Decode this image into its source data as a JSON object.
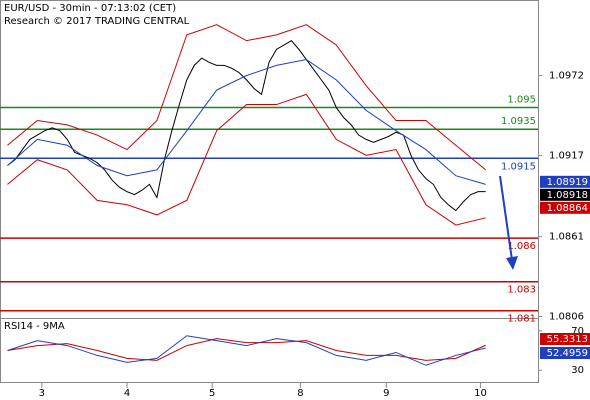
{
  "chart_data": {
    "type": "line",
    "title": "EUR/USD - 30min - 07:13:02 (CET)",
    "subtitle": "Research © 2017 TRADING CENTRAL",
    "xlim": [
      0,
      72
    ],
    "xticks": [
      {
        "value": 5.6,
        "label": "3"
      },
      {
        "value": 17,
        "label": "4"
      },
      {
        "value": 28.4,
        "label": "5"
      },
      {
        "value": 40.2,
        "label": "8"
      },
      {
        "value": 51.7,
        "label": "9"
      },
      {
        "value": 64.3,
        "label": "10"
      }
    ],
    "ylim": [
      1.0805,
      1.1024
    ],
    "yticks": [
      1.0972,
      1.0917,
      1.0861,
      1.0806
    ],
    "series": [
      {
        "color": "#000000",
        "x": [
          1,
          2,
          3,
          4,
          5,
          6,
          7,
          8,
          9,
          10,
          11,
          12,
          13,
          14,
          15,
          16,
          17,
          18,
          19,
          20,
          21,
          22,
          23,
          24,
          25,
          26,
          27,
          28,
          29,
          30,
          31,
          32,
          33,
          34,
          35,
          36,
          37,
          38,
          39,
          40,
          41,
          42,
          43,
          44,
          45,
          46,
          47,
          48,
          49,
          50,
          51,
          52,
          53,
          54,
          55,
          56,
          57,
          58,
          59,
          60,
          61,
          62,
          63,
          64,
          65
        ],
        "values": [
          1.091,
          1.0914,
          1.0921,
          1.0928,
          1.0931,
          1.0934,
          1.0936,
          1.0934,
          1.0928,
          1.0919,
          1.0917,
          1.0915,
          1.0912,
          1.0907,
          1.09,
          1.0895,
          1.0892,
          1.089,
          1.0893,
          1.0897,
          1.0888,
          1.0914,
          1.0934,
          1.0952,
          1.0969,
          1.0979,
          1.0984,
          1.0981,
          1.0979,
          1.0979,
          1.0977,
          1.0974,
          1.0969,
          1.0963,
          1.0959,
          1.0981,
          1.099,
          1.0993,
          1.0996,
          1.099,
          1.0983,
          1.0976,
          1.0969,
          1.0962,
          1.095,
          1.0943,
          1.0938,
          1.0931,
          1.0928,
          1.0926,
          1.0928,
          1.093,
          1.0933,
          1.0931,
          1.0917,
          1.0907,
          1.0901,
          1.0897,
          1.0888,
          1.0883,
          1.0879,
          1.0885,
          1.089,
          1.0892,
          1.0892
        ]
      },
      {
        "color": "#cc0000",
        "x": [
          1,
          5,
          9,
          13,
          17,
          21,
          25,
          29,
          33,
          37,
          41,
          45,
          49,
          53,
          57,
          61,
          65
        ],
        "values": [
          1.0924,
          1.0941,
          1.0938,
          1.0931,
          1.0921,
          1.0941,
          1.1,
          1.1007,
          1.0996,
          1.1,
          1.1007,
          1.0993,
          1.0965,
          1.0941,
          1.0941,
          1.0924,
          1.0907
        ]
      },
      {
        "color": "#1f3fbf",
        "x": [
          1,
          5,
          9,
          13,
          17,
          21,
          25,
          29,
          33,
          37,
          41,
          45,
          49,
          53,
          57,
          61,
          65
        ],
        "values": [
          1.091,
          1.0928,
          1.0924,
          1.091,
          1.0903,
          1.0907,
          1.0934,
          1.0962,
          1.0972,
          1.0979,
          1.0983,
          1.0969,
          1.0948,
          1.0934,
          1.0921,
          1.0903,
          1.0897
        ]
      },
      {
        "color": "#cc0000",
        "x": [
          1,
          5,
          9,
          13,
          17,
          21,
          25,
          29,
          33,
          37,
          41,
          45,
          49,
          53,
          57,
          61,
          65
        ],
        "values": [
          1.0897,
          1.0914,
          1.0907,
          1.0886,
          1.0883,
          1.0876,
          1.0886,
          1.0934,
          1.0952,
          1.0952,
          1.0959,
          1.0928,
          1.0917,
          1.0921,
          1.0883,
          1.0869,
          1.0874
        ]
      }
    ],
    "levels": [
      {
        "value": 1.095,
        "color": "#1a8a1a"
      },
      {
        "value": 1.0935,
        "color": "#1a8a1a"
      },
      {
        "value": 1.0915,
        "color": "#1f3fbf"
      },
      {
        "value": 1.086,
        "color": "#cc0000"
      },
      {
        "value": 1.083,
        "color": "#cc0000"
      },
      {
        "value": 1.081,
        "color": "#cc0000"
      }
    ],
    "price_tags": [
      {
        "value": 1.08919,
        "color": "#1f3fbf"
      },
      {
        "value": 1.08918,
        "color": "#000000"
      },
      {
        "value": 1.08864,
        "color": "#cc0000"
      }
    ],
    "rsi": {
      "title": "RSI14 - 9MA",
      "ylim": [
        17,
        83
      ],
      "yticks": [
        70,
        30
      ],
      "series": [
        {
          "color": "#cc0000",
          "x": [
            1,
            5,
            9,
            13,
            17,
            21,
            25,
            29,
            33,
            37,
            41,
            45,
            49,
            53,
            57,
            61,
            65
          ],
          "values": [
            50,
            55,
            57,
            50,
            42,
            40,
            55,
            62,
            58,
            58,
            60,
            50,
            45,
            45,
            40,
            42,
            55.3313
          ]
        },
        {
          "color": "#1f3fbf",
          "x": [
            1,
            5,
            9,
            13,
            17,
            21,
            25,
            29,
            33,
            37,
            41,
            45,
            49,
            53,
            57,
            61,
            65
          ],
          "values": [
            50,
            60,
            55,
            45,
            38,
            42,
            65,
            60,
            55,
            62,
            58,
            45,
            40,
            48,
            35,
            45,
            52.4959
          ]
        }
      ]
    }
  }
}
